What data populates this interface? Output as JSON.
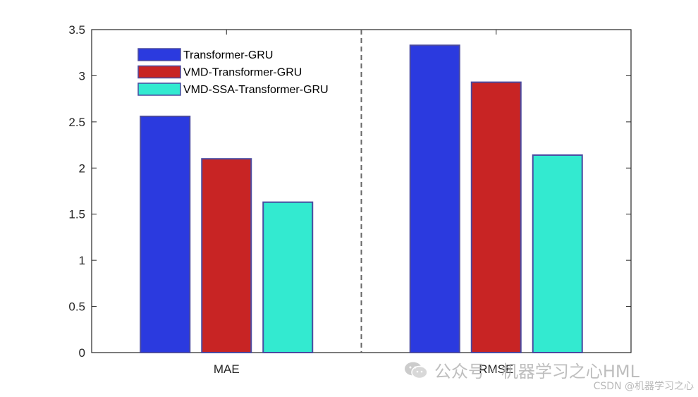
{
  "chart_data": {
    "type": "bar",
    "categories": [
      "MAE",
      "RMSE"
    ],
    "series": [
      {
        "name": "Transformer-GRU",
        "color": "#2b3adf",
        "values": [
          2.56,
          3.33
        ]
      },
      {
        "name": "VMD-Transformer-GRU",
        "color": "#c82424",
        "values": [
          2.1,
          2.93
        ]
      },
      {
        "name": "VMD-SSA-Transformer-GRU",
        "color": "#33ead0",
        "values": [
          1.63,
          2.14
        ]
      }
    ],
    "ylim": [
      0,
      3.5
    ],
    "yticks": [
      "0",
      "0.5",
      "1",
      "1.5",
      "2",
      "2.5",
      "3",
      "3.5"
    ],
    "ytick_values": [
      0,
      0.5,
      1,
      1.5,
      2,
      2.5,
      3,
      3.5
    ],
    "separator": "dashed-vertical-between-groups",
    "legend_position": "top-left",
    "bar_edge_color": "#4a4aa0"
  },
  "watermark": {
    "primary": "公众号 · 机器学习之心HML",
    "secondary": "CSDN @机器学习之心"
  }
}
